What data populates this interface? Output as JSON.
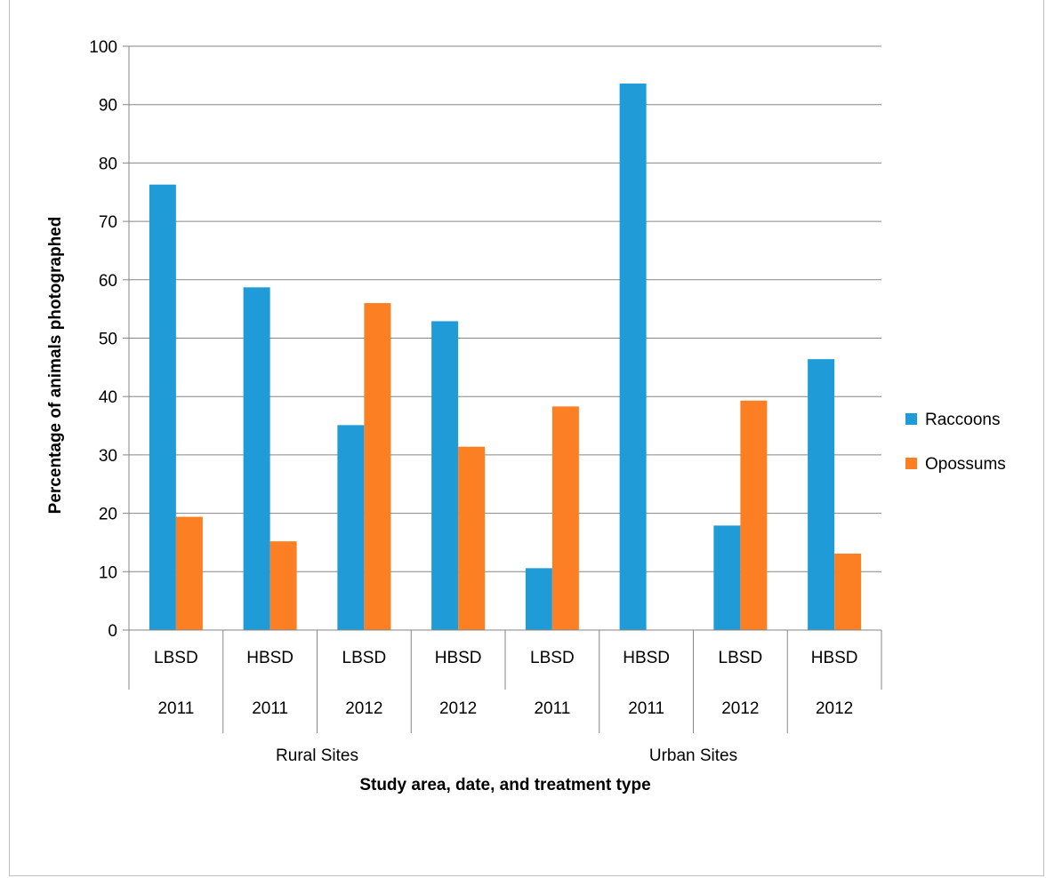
{
  "chart_data": {
    "type": "bar",
    "title": "",
    "xlabel": "Study area, date, and treatment type",
    "ylabel": "Percentage of animals photographed",
    "ylim": [
      0,
      100
    ],
    "yticks": [
      0,
      10,
      20,
      30,
      40,
      50,
      60,
      70,
      80,
      90,
      100
    ],
    "grid": true,
    "legend": "right",
    "categories": [
      {
        "treatment": "LBSD",
        "year": "2011"
      },
      {
        "treatment": "HBSD",
        "year": "2011"
      },
      {
        "treatment": "LBSD",
        "year": "2012"
      },
      {
        "treatment": "HBSD",
        "year": "2012"
      },
      {
        "treatment": "LBSD",
        "year": "2011"
      },
      {
        "treatment": "HBSD",
        "year": "2011"
      },
      {
        "treatment": "LBSD",
        "year": "2012"
      },
      {
        "treatment": "HBSD",
        "year": "2012"
      }
    ],
    "groups": [
      {
        "label": "Rural Sites",
        "span": [
          0,
          3
        ]
      },
      {
        "label": "Urban Sites",
        "span": [
          4,
          7
        ]
      }
    ],
    "series": [
      {
        "name": "Raccoons",
        "color": "#1f9bd7",
        "values": [
          76.3,
          58.7,
          35.1,
          52.9,
          10.6,
          93.6,
          17.9,
          46.4
        ]
      },
      {
        "name": "Opossums",
        "color": "#fd7f23",
        "values": [
          19.4,
          15.2,
          56.0,
          31.4,
          38.3,
          0,
          39.3,
          13.1
        ]
      }
    ]
  }
}
